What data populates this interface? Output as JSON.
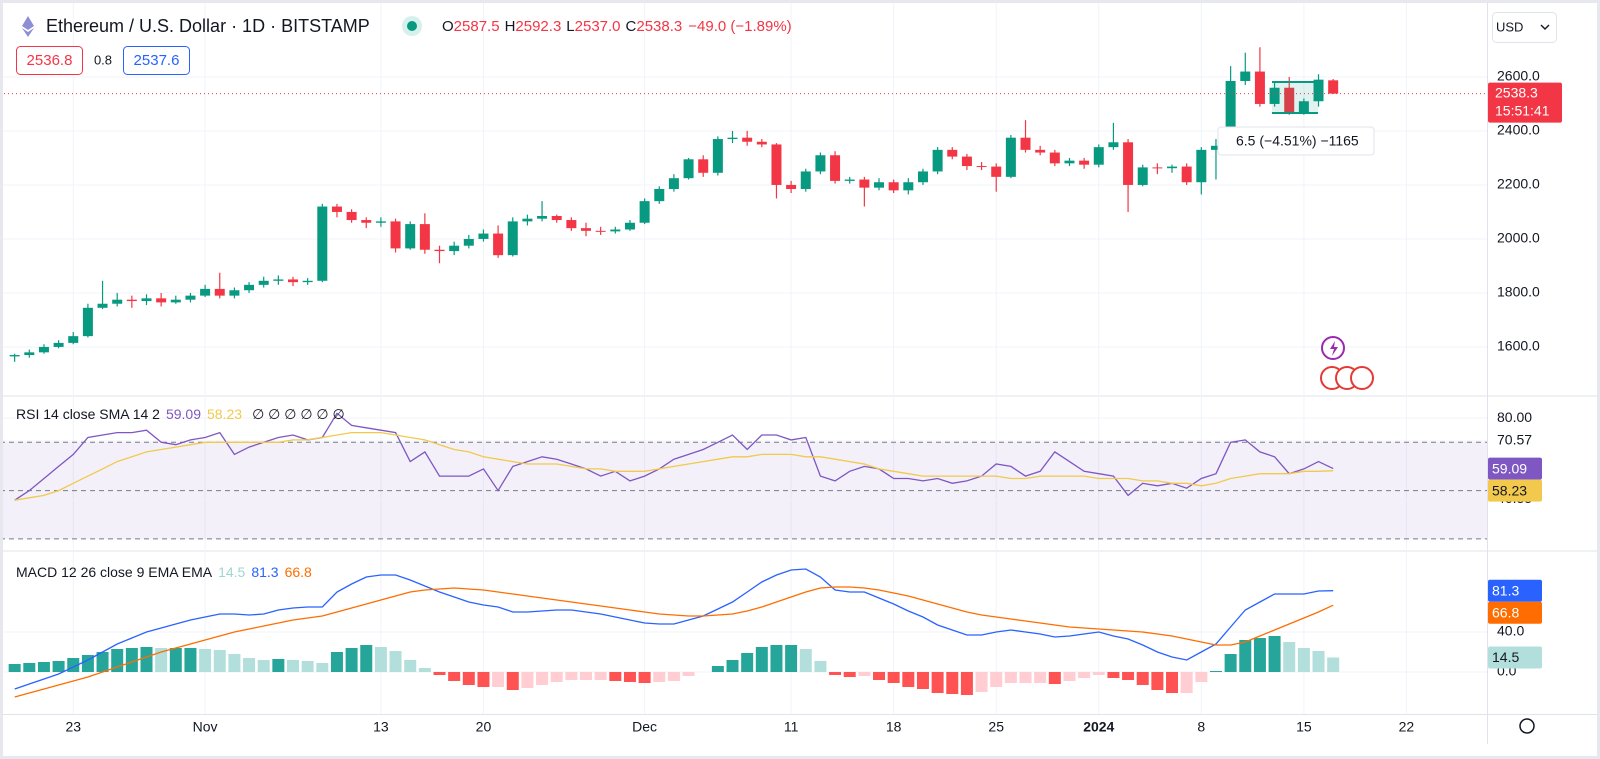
{
  "header": {
    "symbol": "Ethereum / U.S. Dollar · 1D · BITSTAMP",
    "ohlc": [
      {
        "key": "O",
        "value": "2587.5"
      },
      {
        "key": "H",
        "value": "2592.3"
      },
      {
        "key": "L",
        "value": "2537.0"
      },
      {
        "key": "C",
        "value": "2538.3"
      }
    ],
    "change": "−49.0 (−1.89%)",
    "bid": "2536.8",
    "spread": "0.8",
    "ask": "2537.6",
    "currency": "USD",
    "countdown": "15:51:41",
    "measure": "6.5 (−4.51%) −1165"
  },
  "chart_data": [
    {
      "type": "candlestick",
      "up_color": "#089981",
      "down_color": "#f23645",
      "grid": true,
      "xlim": [
        -1,
        100.5
      ],
      "xticks": [
        {
          "value": 4,
          "label": "23"
        },
        {
          "value": 13,
          "label": "Nov"
        },
        {
          "value": 25,
          "label": "13"
        },
        {
          "value": 32,
          "label": "20"
        },
        {
          "value": 43,
          "label": "Dec"
        },
        {
          "value": 53,
          "label": "11"
        },
        {
          "value": 60,
          "label": "18"
        },
        {
          "value": 67,
          "label": "25"
        },
        {
          "value": 74,
          "label": "2024",
          "bold": true
        },
        {
          "value": 81,
          "label": "8"
        },
        {
          "value": 88,
          "label": "15"
        },
        {
          "value": 95,
          "label": "22"
        }
      ],
      "ylim": [
        1422,
        2885
      ],
      "yticks": [
        {
          "value": 1600,
          "label": "1600.0"
        },
        {
          "value": 1800,
          "label": "1800.0"
        },
        {
          "value": 2000,
          "label": "2000.0"
        },
        {
          "value": 2200,
          "label": "2200.0"
        },
        {
          "value": 2400,
          "label": "2400.0"
        },
        {
          "value": 2600,
          "label": "2600.0"
        }
      ],
      "open": [
        1565,
        1570,
        1580,
        1600,
        1615,
        1640,
        1745,
        1760,
        1775,
        1770,
        1780,
        1765,
        1775,
        1790,
        1815,
        1790,
        1810,
        1830,
        1845,
        1850,
        1840,
        1845,
        2120,
        2100,
        2070,
        2060,
        2065,
        1965,
        2055,
        1960,
        1955,
        1975,
        2000,
        2020,
        1940,
        2065,
        2075,
        2085,
        2070,
        2040,
        2030,
        2028,
        2035,
        2060,
        2140,
        2185,
        2225,
        2295,
        2245,
        2370,
        2375,
        2360,
        2350,
        2200,
        2185,
        2250,
        2310,
        2215,
        2220,
        2190,
        2210,
        2180,
        2210,
        2250,
        2330,
        2305,
        2270,
        2268,
        2230,
        2375,
        2330,
        2320,
        2280,
        2290,
        2275,
        2340,
        2358,
        2200,
        2265,
        2262,
        2268,
        2210,
        2330,
        2345,
        2585,
        2620,
        2500,
        2560,
        2470,
        2510,
        2587.5
      ],
      "high": [
        1575,
        1590,
        1610,
        1625,
        1655,
        1760,
        1845,
        1800,
        1790,
        1795,
        1800,
        1790,
        1800,
        1830,
        1875,
        1820,
        1840,
        1860,
        1865,
        1860,
        1855,
        2130,
        2130,
        2110,
        2080,
        2080,
        2075,
        2065,
        2095,
        1975,
        1990,
        2015,
        2035,
        2050,
        2080,
        2090,
        2140,
        2090,
        2080,
        2060,
        2045,
        2045,
        2070,
        2150,
        2195,
        2240,
        2300,
        2310,
        2380,
        2400,
        2400,
        2370,
        2355,
        2215,
        2260,
        2320,
        2325,
        2230,
        2230,
        2225,
        2220,
        2225,
        2260,
        2340,
        2340,
        2315,
        2285,
        2280,
        2385,
        2440,
        2345,
        2330,
        2300,
        2300,
        2350,
        2430,
        2370,
        2275,
        2280,
        2275,
        2280,
        2340,
        2370,
        2640,
        2690,
        2710,
        2580,
        2600,
        2520,
        2610,
        2592.3
      ],
      "low": [
        1545,
        1560,
        1575,
        1595,
        1610,
        1635,
        1740,
        1750,
        1745,
        1755,
        1750,
        1760,
        1765,
        1785,
        1780,
        1780,
        1800,
        1820,
        1830,
        1825,
        1830,
        1840,
        2080,
        2060,
        2040,
        2045,
        1950,
        1960,
        1945,
        1910,
        1940,
        1965,
        1990,
        1930,
        1935,
        2050,
        2065,
        2060,
        2030,
        2010,
        2015,
        2020,
        2030,
        2055,
        2130,
        2175,
        2220,
        2230,
        2235,
        2355,
        2345,
        2340,
        2150,
        2170,
        2175,
        2240,
        2205,
        2205,
        2120,
        2180,
        2170,
        2165,
        2200,
        2240,
        2295,
        2255,
        2255,
        2175,
        2225,
        2320,
        2310,
        2270,
        2270,
        2260,
        2265,
        2330,
        2100,
        2195,
        2240,
        2245,
        2200,
        2165,
        2220,
        2340,
        2570,
        2490,
        2490,
        2460,
        2460,
        2490,
        2537.0
      ],
      "close": [
        1570,
        1580,
        1600,
        1615,
        1640,
        1745,
        1760,
        1775,
        1770,
        1780,
        1765,
        1775,
        1790,
        1815,
        1790,
        1810,
        1830,
        1845,
        1850,
        1840,
        1845,
        2120,
        2100,
        2070,
        2060,
        2065,
        1965,
        2055,
        1960,
        1955,
        1975,
        2000,
        2020,
        1940,
        2065,
        2075,
        2085,
        2070,
        2040,
        2030,
        2028,
        2035,
        2060,
        2140,
        2185,
        2225,
        2295,
        2245,
        2370,
        2375,
        2360,
        2350,
        2200,
        2185,
        2250,
        2310,
        2215,
        2220,
        2190,
        2210,
        2180,
        2210,
        2250,
        2330,
        2305,
        2270,
        2268,
        2230,
        2375,
        2330,
        2320,
        2280,
        2290,
        2275,
        2340,
        2358,
        2200,
        2265,
        2262,
        2268,
        2210,
        2330,
        2345,
        2585,
        2620,
        2500,
        2560,
        2470,
        2510,
        2590,
        2538.3
      ]
    },
    {
      "type": "line",
      "title": "RSI 14 close SMA 14 2",
      "extra": "∅ ∅ ∅ ∅ ∅ ∅",
      "ylim": [
        25.4,
        88.75
      ],
      "yticks": [
        {
          "value": 80,
          "label": "80.00"
        },
        {
          "value": 70.57,
          "label": "70.57"
        },
        {
          "value": 46.35,
          "label": "46.35"
        }
      ],
      "bands": [
        70,
        50,
        30
      ],
      "band_color": "#7e57c2",
      "series": [
        {
          "name": "RSI",
          "color": "#7e57c2",
          "values": [
            46,
            50,
            55,
            60,
            65,
            72,
            73,
            74,
            74,
            75,
            70,
            69,
            71,
            72,
            74,
            65,
            68,
            70,
            72,
            73,
            71,
            72,
            82,
            77,
            76,
            75,
            74,
            62,
            66,
            56,
            56,
            56,
            59,
            50,
            60,
            62,
            64,
            63,
            61,
            59,
            56,
            58,
            54,
            56,
            59,
            63,
            65,
            67,
            70,
            73,
            67,
            73,
            73,
            71,
            72,
            56,
            54,
            58,
            60,
            59,
            55,
            55,
            54,
            55,
            53,
            54,
            56,
            61,
            60,
            56,
            58,
            66,
            62,
            58,
            57,
            56,
            48,
            53,
            52,
            53,
            51,
            55,
            57,
            70,
            71,
            66,
            64,
            57,
            59,
            62,
            59.09
          ]
        },
        {
          "name": "SMA",
          "color": "#f2c94c",
          "values": [
            46,
            47,
            48,
            50,
            53,
            56,
            59,
            62,
            64,
            66,
            67,
            68,
            69,
            70,
            70,
            70,
            70,
            70,
            70,
            71,
            71,
            72,
            73,
            74,
            74,
            74,
            73,
            72,
            71,
            69,
            67,
            66,
            64,
            63,
            62,
            61,
            61,
            61,
            60,
            59,
            59,
            58,
            58,
            58,
            59,
            60,
            61,
            62,
            63,
            64,
            64,
            65,
            65,
            65,
            64,
            64,
            63,
            62,
            61,
            59,
            58,
            57,
            56,
            56,
            56,
            56,
            56,
            56,
            55,
            55,
            56,
            56,
            56,
            56,
            55,
            55,
            55,
            54,
            54,
            53,
            53,
            52,
            53,
            55,
            56,
            57,
            57,
            57,
            58,
            58,
            58.23
          ]
        }
      ]
    },
    {
      "type": "macd",
      "title": "MACD 12 26 close 9 EMA EMA",
      "ylim": [
        -41,
        120
      ],
      "yticks": [
        {
          "value": 0,
          "label": "0.0"
        },
        {
          "value": 40,
          "label": "40.0"
        }
      ],
      "histogram_colors": [
        "#26a69a",
        "#b2dfdb",
        "#ffcdd2",
        "#ff5252"
      ],
      "series": [
        {
          "name": "Histogram",
          "color": "#b2dfdb",
          "values": [
            8,
            9,
            10,
            11,
            14,
            17,
            20,
            23,
            24,
            25,
            24,
            24,
            24,
            23,
            22,
            18,
            14,
            12,
            13,
            12,
            11,
            9,
            20,
            24,
            27,
            25,
            21,
            12,
            4,
            -3,
            -9,
            -13,
            -15,
            -15,
            -18,
            -16,
            -13,
            -10,
            -8,
            -8,
            -8,
            -9,
            -10,
            -11,
            -10,
            -9,
            -4,
            0,
            6,
            12,
            19,
            25,
            27,
            27,
            23,
            11,
            -3,
            -5,
            -4,
            -8,
            -11,
            -15,
            -17,
            -21,
            -22,
            -23,
            -20,
            -15,
            -11,
            -11,
            -11,
            -12,
            -9,
            -6,
            -3,
            -6,
            -8,
            -13,
            -18,
            -21,
            -21,
            -10,
            1,
            18,
            32,
            34,
            36,
            30,
            24,
            21,
            14.5
          ]
        },
        {
          "name": "MACD",
          "color": "#2962ff",
          "values": [
            -17,
            -12,
            -7,
            -2,
            5,
            12,
            20,
            28,
            34,
            40,
            44,
            48,
            52,
            55,
            58,
            58,
            57,
            58,
            62,
            64,
            65,
            65,
            80,
            88,
            95,
            97,
            97,
            92,
            86,
            80,
            75,
            70,
            67,
            65,
            60,
            60,
            61,
            62,
            62,
            60,
            58,
            55,
            52,
            49,
            48,
            48,
            52,
            56,
            63,
            70,
            80,
            90,
            97,
            102,
            103,
            95,
            82,
            80,
            80,
            74,
            68,
            61,
            55,
            47,
            42,
            37,
            37,
            40,
            42,
            40,
            38,
            35,
            36,
            38,
            40,
            36,
            33,
            27,
            20,
            15,
            12,
            20,
            28,
            45,
            62,
            70,
            78,
            78,
            78,
            81,
            81.3
          ]
        },
        {
          "name": "Signal",
          "color": "#ff6d00",
          "values": [
            -25,
            -21,
            -17,
            -13,
            -9,
            -5,
            0,
            5,
            10,
            15,
            20,
            24,
            28,
            32,
            36,
            40,
            43,
            46,
            49,
            52,
            54,
            56,
            60,
            64,
            68,
            72,
            76,
            80,
            82,
            83,
            84,
            83,
            82,
            80,
            78,
            76,
            74,
            72,
            70,
            68,
            66,
            64,
            62,
            60,
            58,
            57,
            56,
            56,
            57,
            58,
            61,
            65,
            70,
            75,
            80,
            84,
            85,
            85,
            84,
            82,
            79,
            76,
            72,
            68,
            64,
            60,
            57,
            55,
            53,
            51,
            49,
            47,
            45,
            44,
            43,
            42,
            41,
            40,
            38,
            36,
            33,
            30,
            27,
            27,
            30,
            36,
            42,
            48,
            54,
            60,
            66.8
          ]
        }
      ]
    }
  ]
}
